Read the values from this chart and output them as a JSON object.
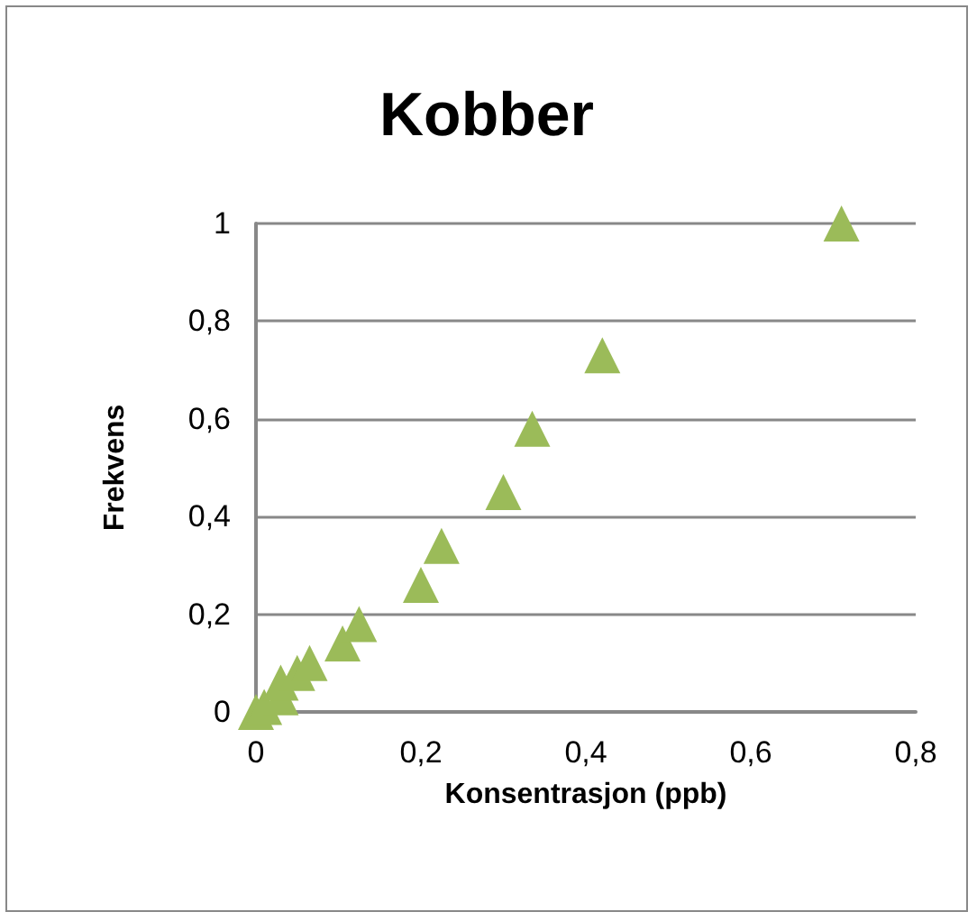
{
  "chart_data": {
    "type": "scatter",
    "title": "Kobber",
    "xlabel": "Konsentrasjon (ppb)",
    "ylabel": "Frekvens",
    "x": [
      0,
      0.01,
      0.03,
      0.03,
      0.05,
      0.065,
      0.105,
      0.125,
      0.2,
      0.225,
      0.3,
      0.335,
      0.42,
      0.71
    ],
    "values": [
      0,
      0.01,
      0.03,
      0.06,
      0.08,
      0.1,
      0.14,
      0.18,
      0.26,
      0.34,
      0.45,
      0.58,
      0.73,
      1
    ],
    "color": "#9bbb59",
    "marker": "triangle",
    "xlim": [
      0,
      0.8
    ],
    "ylim": [
      0,
      1
    ],
    "xticks": [
      0,
      {
        "value": 0.2,
        "label": "0,2"
      },
      {
        "value": 0.4,
        "label": "0,4"
      },
      {
        "value": 0.6,
        "label": "0,6"
      },
      {
        "value": 0.8,
        "label": "0,8"
      }
    ],
    "yticks": [
      0,
      {
        "value": 0.2,
        "label": "0,2"
      },
      {
        "value": 0.4,
        "label": "0,4"
      },
      {
        "value": 0.6,
        "label": "0,6"
      },
      {
        "value": 0.8,
        "label": "0,8"
      },
      1
    ],
    "grid": "y"
  }
}
